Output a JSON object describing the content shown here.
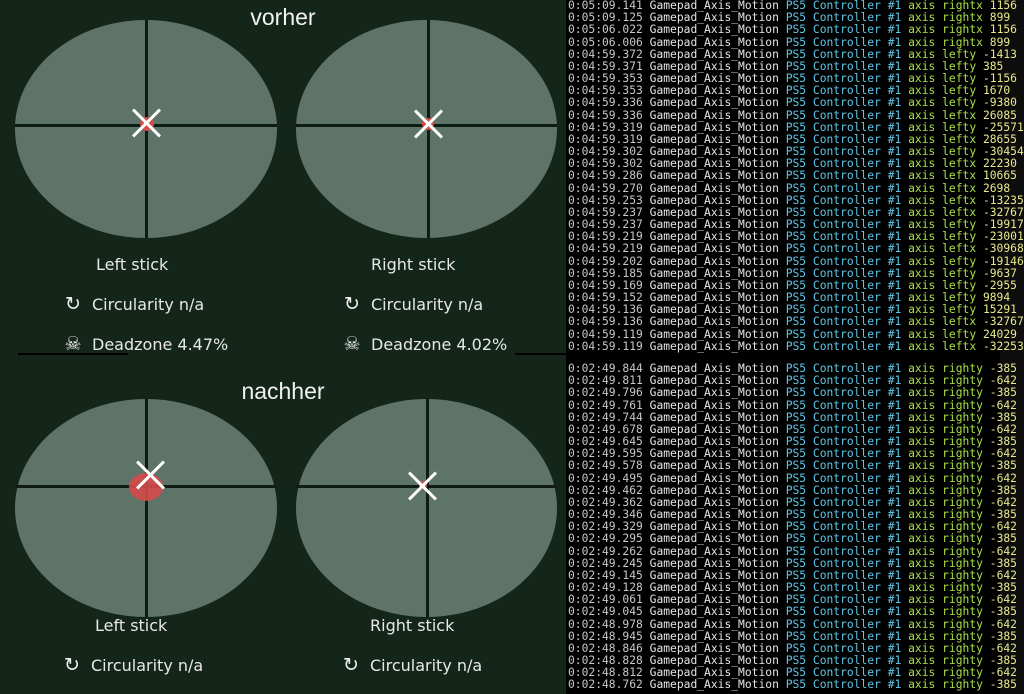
{
  "colors": {
    "panel_bg": "#14261a",
    "stick_area": "#5f7468",
    "dot": "#d44b4b",
    "log_bg": "#000000"
  },
  "sections": [
    {
      "title": "vorher",
      "sticks": [
        {
          "label": "Left stick",
          "circularity": "Circularity n/a",
          "deadzone": "Deadzone 4.47%"
        },
        {
          "label": "Right stick",
          "circularity": "Circularity n/a",
          "deadzone": "Deadzone 4.02%"
        }
      ]
    },
    {
      "title": "nachher",
      "sticks": [
        {
          "label": "Left stick",
          "circularity": "Circularity n/a"
        },
        {
          "label": "Right stick",
          "circularity": "Circularity n/a"
        }
      ]
    }
  ],
  "icons": {
    "circularity": "rotate-clockwise-icon",
    "deadzone": "skull-crossbones-icon"
  },
  "log_top": [
    [
      "0:05:09.141",
      "Gamepad_Axis_Motion",
      "PS5 Controller #1",
      "axis rightx",
      "1156"
    ],
    [
      "0:05:09.125",
      "Gamepad_Axis_Motion",
      "PS5 Controller #1",
      "axis rightx",
      "899"
    ],
    [
      "0:05:06.022",
      "Gamepad_Axis_Motion",
      "PS5 Controller #1",
      "axis rightx",
      "1156"
    ],
    [
      "0:05:06.006",
      "Gamepad_Axis_Motion",
      "PS5 Controller #1",
      "axis rightx",
      "899"
    ],
    [
      "0:04:59.372",
      "Gamepad_Axis_Motion",
      "PS5 Controller #1",
      "axis lefty",
      "-1413"
    ],
    [
      "0:04:59.371",
      "Gamepad_Axis_Motion",
      "PS5 Controller #1",
      "axis lefty",
      "385"
    ],
    [
      "0:04:59.353",
      "Gamepad_Axis_Motion",
      "PS5 Controller #1",
      "axis lefty",
      "-1156"
    ],
    [
      "0:04:59.353",
      "Gamepad_Axis_Motion",
      "PS5 Controller #1",
      "axis lefty",
      "1670"
    ],
    [
      "0:04:59.336",
      "Gamepad_Axis_Motion",
      "PS5 Controller #1",
      "axis lefty",
      "-9380"
    ],
    [
      "0:04:59.336",
      "Gamepad_Axis_Motion",
      "PS5 Controller #1",
      "axis leftx",
      "26085"
    ],
    [
      "0:04:59.319",
      "Gamepad_Axis_Motion",
      "PS5 Controller #1",
      "axis lefty",
      "-25571"
    ],
    [
      "0:04:59.319",
      "Gamepad_Axis_Motion",
      "PS5 Controller #1",
      "axis leftx",
      "28655"
    ],
    [
      "0:04:59.302",
      "Gamepad_Axis_Motion",
      "PS5 Controller #1",
      "axis lefty",
      "-30454"
    ],
    [
      "0:04:59.302",
      "Gamepad_Axis_Motion",
      "PS5 Controller #1",
      "axis leftx",
      "22230"
    ],
    [
      "0:04:59.286",
      "Gamepad_Axis_Motion",
      "PS5 Controller #1",
      "axis leftx",
      "10665"
    ],
    [
      "0:04:59.270",
      "Gamepad_Axis_Motion",
      "PS5 Controller #1",
      "axis leftx",
      "2698"
    ],
    [
      "0:04:59.253",
      "Gamepad_Axis_Motion",
      "PS5 Controller #1",
      "axis leftx",
      "-13235"
    ],
    [
      "0:04:59.237",
      "Gamepad_Axis_Motion",
      "PS5 Controller #1",
      "axis leftx",
      "-32767"
    ],
    [
      "0:04:59.237",
      "Gamepad_Axis_Motion",
      "PS5 Controller #1",
      "axis lefty",
      "-19917"
    ],
    [
      "0:04:59.219",
      "Gamepad_Axis_Motion",
      "PS5 Controller #1",
      "axis lefty",
      "-23001"
    ],
    [
      "0:04:59.219",
      "Gamepad_Axis_Motion",
      "PS5 Controller #1",
      "axis leftx",
      "-30968"
    ],
    [
      "0:04:59.202",
      "Gamepad_Axis_Motion",
      "PS5 Controller #1",
      "axis lefty",
      "-19146"
    ],
    [
      "0:04:59.185",
      "Gamepad_Axis_Motion",
      "PS5 Controller #1",
      "axis lefty",
      "-9637"
    ],
    [
      "0:04:59.169",
      "Gamepad_Axis_Motion",
      "PS5 Controller #1",
      "axis lefty",
      "-2955"
    ],
    [
      "0:04:59.152",
      "Gamepad_Axis_Motion",
      "PS5 Controller #1",
      "axis lefty",
      "9894"
    ],
    [
      "0:04:59.136",
      "Gamepad_Axis_Motion",
      "PS5 Controller #1",
      "axis lefty",
      "15291"
    ],
    [
      "0:04:59.136",
      "Gamepad_Axis_Motion",
      "PS5 Controller #1",
      "axis leftx",
      "-32767"
    ],
    [
      "0:04:59.119",
      "Gamepad_Axis_Motion",
      "PS5 Controller #1",
      "axis lefty",
      "24029"
    ],
    [
      "0:04:59.119",
      "Gamepad_Axis_Motion",
      "PS5 Controller #1",
      "axis leftx",
      "-32253"
    ]
  ],
  "log_bottom": [
    [
      "0:02:49.844",
      "Gamepad_Axis_Motion",
      "PS5 Controller #1",
      "axis righty",
      "-385"
    ],
    [
      "0:02:49.811",
      "Gamepad_Axis_Motion",
      "PS5 Controller #1",
      "axis righty",
      "-642"
    ],
    [
      "0:02:49.796",
      "Gamepad_Axis_Motion",
      "PS5 Controller #1",
      "axis righty",
      "-385"
    ],
    [
      "0:02:49.761",
      "Gamepad_Axis_Motion",
      "PS5 Controller #1",
      "axis righty",
      "-642"
    ],
    [
      "0:02:49.744",
      "Gamepad_Axis_Motion",
      "PS5 Controller #1",
      "axis righty",
      "-385"
    ],
    [
      "0:02:49.678",
      "Gamepad_Axis_Motion",
      "PS5 Controller #1",
      "axis righty",
      "-642"
    ],
    [
      "0:02:49.645",
      "Gamepad_Axis_Motion",
      "PS5 Controller #1",
      "axis righty",
      "-385"
    ],
    [
      "0:02:49.595",
      "Gamepad_Axis_Motion",
      "PS5 Controller #1",
      "axis righty",
      "-642"
    ],
    [
      "0:02:49.578",
      "Gamepad_Axis_Motion",
      "PS5 Controller #1",
      "axis righty",
      "-385"
    ],
    [
      "0:02:49.495",
      "Gamepad_Axis_Motion",
      "PS5 Controller #1",
      "axis righty",
      "-642"
    ],
    [
      "0:02:49.462",
      "Gamepad_Axis_Motion",
      "PS5 Controller #1",
      "axis righty",
      "-385"
    ],
    [
      "0:02:49.362",
      "Gamepad_Axis_Motion",
      "PS5 Controller #1",
      "axis righty",
      "-642"
    ],
    [
      "0:02:49.346",
      "Gamepad_Axis_Motion",
      "PS5 Controller #1",
      "axis righty",
      "-385"
    ],
    [
      "0:02:49.329",
      "Gamepad_Axis_Motion",
      "PS5 Controller #1",
      "axis righty",
      "-642"
    ],
    [
      "0:02:49.295",
      "Gamepad_Axis_Motion",
      "PS5 Controller #1",
      "axis righty",
      "-385"
    ],
    [
      "0:02:49.262",
      "Gamepad_Axis_Motion",
      "PS5 Controller #1",
      "axis righty",
      "-642"
    ],
    [
      "0:02:49.245",
      "Gamepad_Axis_Motion",
      "PS5 Controller #1",
      "axis righty",
      "-385"
    ],
    [
      "0:02:49.145",
      "Gamepad_Axis_Motion",
      "PS5 Controller #1",
      "axis righty",
      "-642"
    ],
    [
      "0:02:49.128",
      "Gamepad_Axis_Motion",
      "PS5 Controller #1",
      "axis righty",
      "-385"
    ],
    [
      "0:02:49.061",
      "Gamepad_Axis_Motion",
      "PS5 Controller #1",
      "axis righty",
      "-642"
    ],
    [
      "0:02:49.045",
      "Gamepad_Axis_Motion",
      "PS5 Controller #1",
      "axis righty",
      "-385"
    ],
    [
      "0:02:48.978",
      "Gamepad_Axis_Motion",
      "PS5 Controller #1",
      "axis righty",
      "-642"
    ],
    [
      "0:02:48.945",
      "Gamepad_Axis_Motion",
      "PS5 Controller #1",
      "axis righty",
      "-385"
    ],
    [
      "0:02:48.846",
      "Gamepad_Axis_Motion",
      "PS5 Controller #1",
      "axis righty",
      "-642"
    ],
    [
      "0:02:48.828",
      "Gamepad_Axis_Motion",
      "PS5 Controller #1",
      "axis righty",
      "-385"
    ],
    [
      "0:02:48.812",
      "Gamepad_Axis_Motion",
      "PS5 Controller #1",
      "axis righty",
      "-642"
    ],
    [
      "0:02:48.762",
      "Gamepad_Axis_Motion",
      "PS5 Controller #1",
      "axis righty",
      "-385"
    ]
  ]
}
